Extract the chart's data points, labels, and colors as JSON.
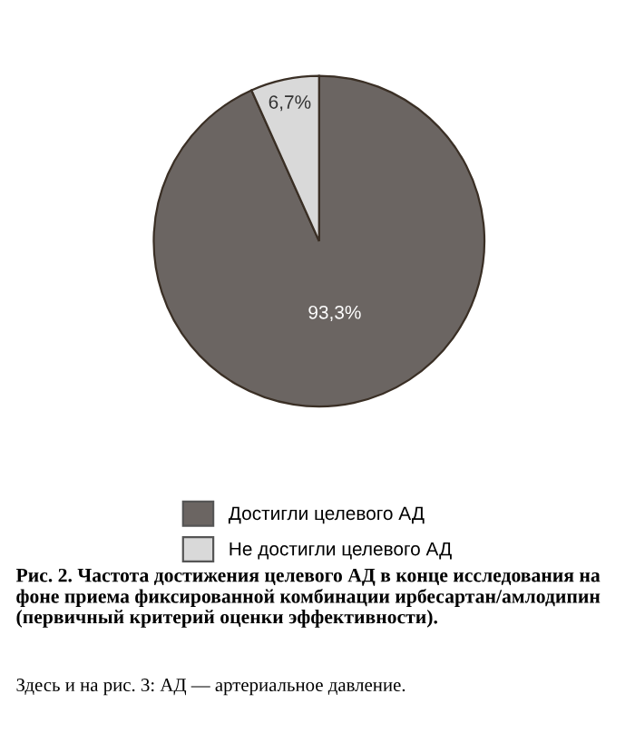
{
  "chart_data": {
    "type": "pie",
    "title": "Рис. 2. Частота достижения целевого АД в конце исследования на фоне приема фиксированной комбинации ирбесартан/амлодипин (первичный критерий оценки эффективности).",
    "categories": [
      "Достигли целевого АД",
      "Не достигли целевого АД"
    ],
    "values": [
      93.3,
      6.7
    ],
    "colors": [
      "#6b6562",
      "#d9d9d9"
    ],
    "value_labels": [
      "93,3%",
      "6,7%"
    ],
    "legend": "bottom",
    "annotations": [
      "Здесь и на рис. 3: АД — артериальное давление."
    ]
  }
}
